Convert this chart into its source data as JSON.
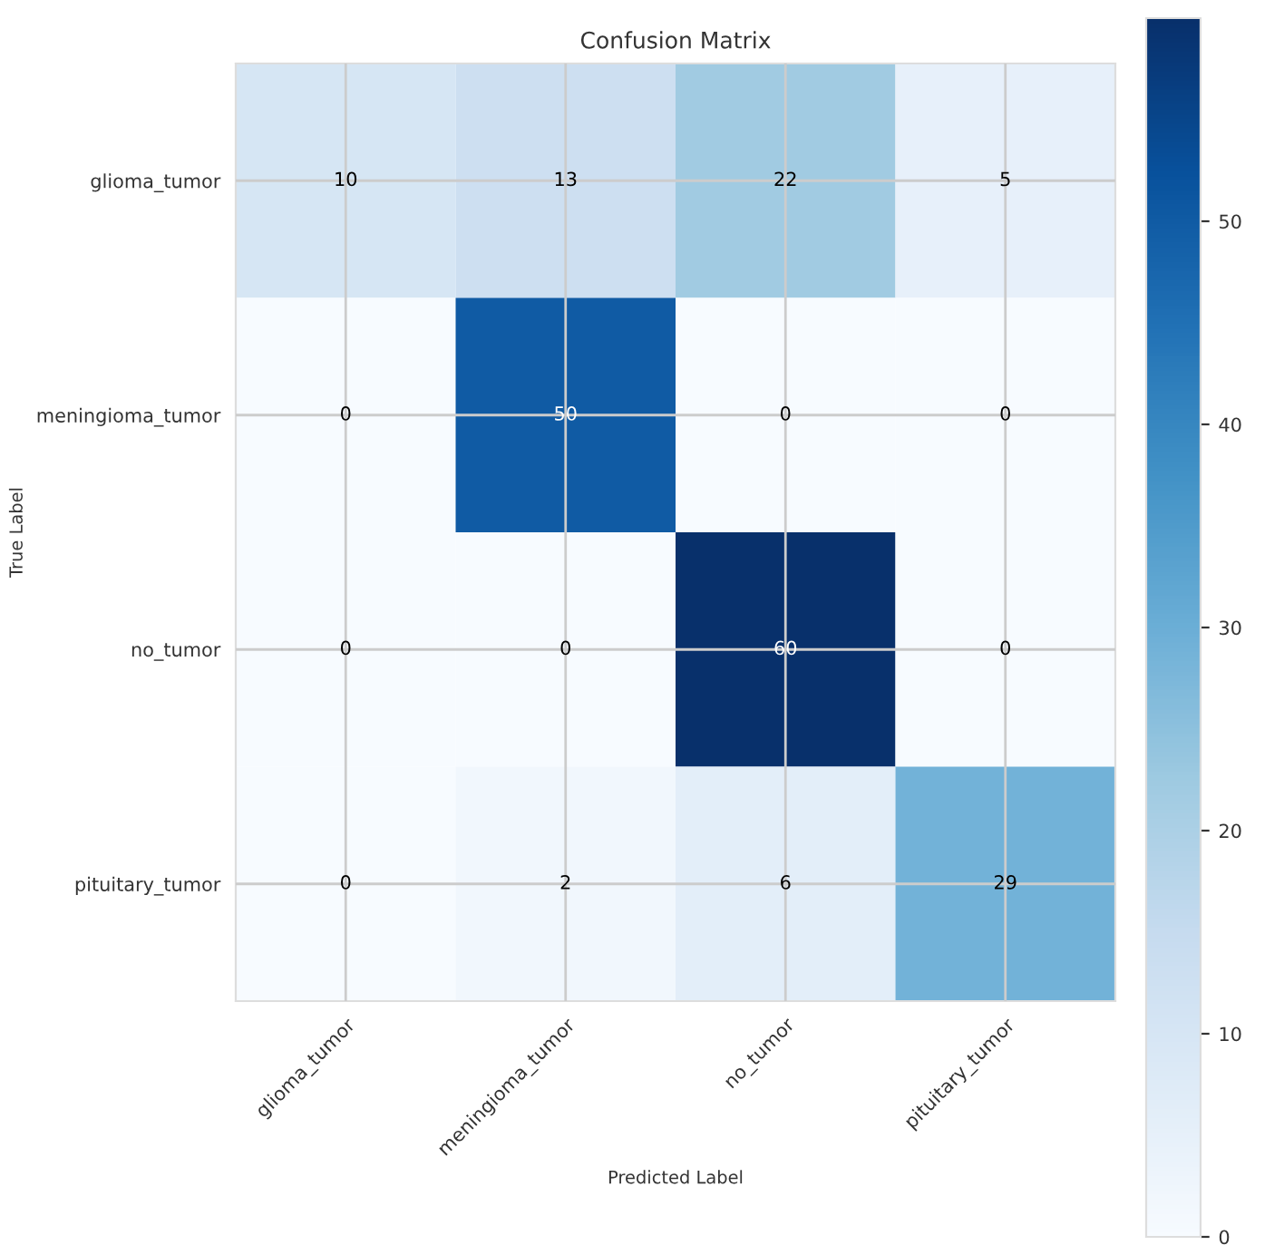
{
  "chart_data": {
    "type": "heatmap",
    "title": "Confusion Matrix",
    "xlabel": "Predicted Label",
    "ylabel": "True Label",
    "categories": [
      "glioma_tumor",
      "meningioma_tumor",
      "no_tumor",
      "pituitary_tumor"
    ],
    "y_categories": [
      "glioma_tumor",
      "meningioma_tumor",
      "no_tumor",
      "pituitary_tumor"
    ],
    "cells": [
      [
        10,
        13,
        22,
        5
      ],
      [
        0,
        50,
        0,
        0
      ],
      [
        0,
        0,
        60,
        0
      ],
      [
        0,
        2,
        6,
        29
      ]
    ],
    "clim": [
      0,
      60
    ],
    "cticks": [
      0,
      10,
      20,
      30,
      40,
      50
    ],
    "grid": true,
    "data_labels": true
  }
}
